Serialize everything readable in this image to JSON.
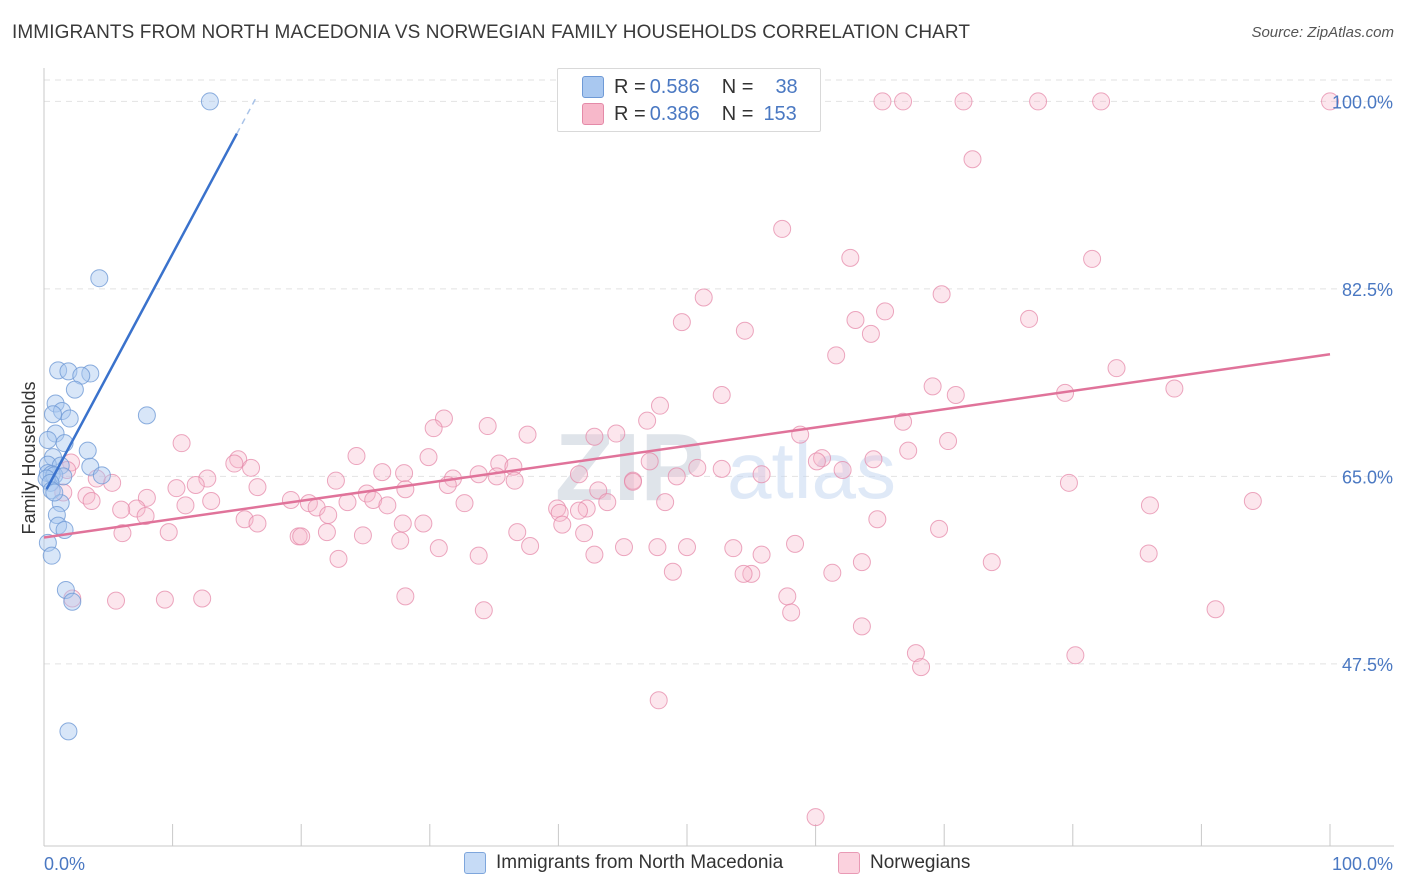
{
  "header": {
    "title": "IMMIGRANTS FROM NORTH MACEDONIA VS NORWEGIAN FAMILY HOUSEHOLDS CORRELATION CHART",
    "source": "Source: ZipAtlas.com"
  },
  "watermark": {
    "zip": "ZIP",
    "atlas": "atlas"
  },
  "legend": {
    "rows": [
      {
        "r_label": "R =",
        "r_value": "0.586",
        "n_label": "N =",
        "n_value": "38",
        "color": "#a9c8f0"
      },
      {
        "r_label": "R =",
        "r_value": "0.386",
        "n_label": "N =",
        "n_value": "153",
        "color": "#f7b8ca"
      }
    ]
  },
  "bottom_legend": {
    "series1": "Immigrants from North Macedonia",
    "series2": "Norwegians"
  },
  "chart_data": {
    "type": "scatter",
    "title": "IMMIGRANTS FROM NORTH MACEDONIA VS NORWEGIAN FAMILY HOUSEHOLDS CORRELATION CHART",
    "xlabel": "",
    "ylabel": "Family Households",
    "xlim": [
      0,
      100
    ],
    "ylim": [
      30.5,
      102
    ],
    "x_tick_labels": [
      "0.0%",
      "100.0%"
    ],
    "y_ticks": [
      47.5,
      65.0,
      82.5,
      100.0
    ],
    "y_tick_labels": [
      "47.5%",
      "65.0%",
      "82.5%",
      "100.0%"
    ],
    "grid": true,
    "colors": {
      "series1": "#a9c8f0",
      "series1_line": "#3a72cc",
      "series2": "#f7b8ca",
      "series2_line": "#e0739a",
      "axis_text": "#4a78c2"
    },
    "series": [
      {
        "name": "Immigrants from North Macedonia",
        "trend": {
          "x0": 0.2,
          "y0": 63.8,
          "x1": 15.0,
          "y1": 97.0,
          "dash_x1": 16.5
        },
        "points": [
          [
            12.9,
            100.0
          ],
          [
            4.3,
            83.5
          ],
          [
            1.1,
            74.9
          ],
          [
            1.9,
            74.8
          ],
          [
            3.6,
            74.6
          ],
          [
            2.9,
            74.4
          ],
          [
            2.4,
            73.1
          ],
          [
            0.9,
            71.8
          ],
          [
            1.4,
            71.1
          ],
          [
            0.7,
            70.8
          ],
          [
            2.0,
            70.4
          ],
          [
            8.0,
            70.7
          ],
          [
            0.9,
            69.0
          ],
          [
            1.6,
            68.1
          ],
          [
            0.3,
            68.4
          ],
          [
            3.4,
            67.4
          ],
          [
            0.7,
            66.8
          ],
          [
            0.3,
            66.1
          ],
          [
            1.3,
            66.0
          ],
          [
            3.6,
            65.9
          ],
          [
            0.3,
            65.3
          ],
          [
            0.6,
            65.2
          ],
          [
            0.8,
            65.1
          ],
          [
            1.5,
            65.0
          ],
          [
            0.2,
            64.8
          ],
          [
            4.5,
            65.1
          ],
          [
            0.5,
            64.4
          ],
          [
            0.6,
            63.7
          ],
          [
            1.3,
            62.5
          ],
          [
            1.0,
            61.4
          ],
          [
            1.1,
            60.4
          ],
          [
            1.6,
            60.0
          ],
          [
            0.3,
            58.8
          ],
          [
            0.6,
            57.6
          ],
          [
            1.7,
            54.4
          ],
          [
            2.2,
            53.3
          ],
          [
            1.9,
            41.2
          ],
          [
            0.8,
            63.5
          ]
        ]
      },
      {
        "name": "Norwegians",
        "trend": {
          "x0": 0.0,
          "y0": 59.3,
          "x1": 100.0,
          "y1": 76.4
        },
        "points": [
          [
            65.2,
            100.0
          ],
          [
            66.8,
            100.0
          ],
          [
            71.5,
            100.0
          ],
          [
            77.3,
            100.0
          ],
          [
            82.2,
            100.0
          ],
          [
            100.0,
            100.0
          ],
          [
            72.2,
            94.6
          ],
          [
            57.4,
            88.1
          ],
          [
            62.7,
            85.4
          ],
          [
            81.5,
            85.3
          ],
          [
            51.3,
            81.7
          ],
          [
            69.8,
            82.0
          ],
          [
            65.4,
            80.4
          ],
          [
            49.6,
            79.4
          ],
          [
            63.1,
            79.6
          ],
          [
            76.6,
            79.7
          ],
          [
            54.5,
            78.6
          ],
          [
            64.3,
            78.3
          ],
          [
            61.6,
            76.3
          ],
          [
            83.4,
            75.1
          ],
          [
            69.1,
            73.4
          ],
          [
            87.9,
            73.2
          ],
          [
            79.4,
            72.8
          ],
          [
            70.9,
            72.6
          ],
          [
            52.7,
            72.6
          ],
          [
            47.9,
            71.6
          ],
          [
            31.1,
            70.4
          ],
          [
            46.9,
            70.2
          ],
          [
            66.8,
            70.1
          ],
          [
            34.5,
            69.7
          ],
          [
            30.3,
            69.5
          ],
          [
            37.6,
            68.9
          ],
          [
            58.8,
            68.9
          ],
          [
            42.8,
            68.7
          ],
          [
            44.5,
            69.0
          ],
          [
            70.3,
            68.3
          ],
          [
            10.7,
            68.1
          ],
          [
            67.2,
            67.4
          ],
          [
            24.3,
            66.9
          ],
          [
            29.9,
            66.8
          ],
          [
            60.5,
            66.7
          ],
          [
            64.5,
            66.6
          ],
          [
            47.1,
            66.4
          ],
          [
            15.1,
            66.6
          ],
          [
            14.8,
            66.2
          ],
          [
            2.1,
            66.3
          ],
          [
            35.4,
            66.2
          ],
          [
            36.5,
            65.9
          ],
          [
            16.1,
            65.8
          ],
          [
            1.8,
            65.6
          ],
          [
            26.3,
            65.4
          ],
          [
            52.7,
            65.7
          ],
          [
            60.1,
            66.4
          ],
          [
            28.0,
            65.3
          ],
          [
            41.6,
            65.2
          ],
          [
            33.8,
            65.2
          ],
          [
            35.2,
            65.0
          ],
          [
            22.7,
            64.6
          ],
          [
            45.8,
            64.6
          ],
          [
            55.8,
            65.2
          ],
          [
            4.1,
            64.8
          ],
          [
            5.3,
            64.4
          ],
          [
            12.7,
            64.8
          ],
          [
            31.8,
            64.8
          ],
          [
            16.6,
            64.0
          ],
          [
            11.8,
            64.2
          ],
          [
            36.6,
            64.6
          ],
          [
            10.3,
            63.9
          ],
          [
            31.4,
            64.2
          ],
          [
            28.1,
            63.8
          ],
          [
            43.1,
            63.7
          ],
          [
            25.1,
            63.4
          ],
          [
            1.5,
            63.5
          ],
          [
            3.3,
            63.2
          ],
          [
            8.0,
            63.0
          ],
          [
            3.7,
            62.7
          ],
          [
            13.0,
            62.7
          ],
          [
            19.2,
            62.8
          ],
          [
            20.6,
            62.5
          ],
          [
            25.6,
            62.8
          ],
          [
            43.8,
            62.6
          ],
          [
            48.3,
            62.6
          ],
          [
            11.0,
            62.3
          ],
          [
            23.6,
            62.6
          ],
          [
            26.7,
            62.3
          ],
          [
            7.2,
            62.0
          ],
          [
            39.9,
            62.0
          ],
          [
            42.2,
            62.0
          ],
          [
            41.6,
            61.8
          ],
          [
            32.7,
            62.5
          ],
          [
            45.8,
            64.5
          ],
          [
            21.2,
            62.1
          ],
          [
            6.0,
            61.9
          ],
          [
            22.1,
            61.4
          ],
          [
            40.1,
            61.6
          ],
          [
            7.9,
            61.3
          ],
          [
            15.6,
            61.0
          ],
          [
            16.6,
            60.6
          ],
          [
            27.9,
            60.6
          ],
          [
            29.5,
            60.6
          ],
          [
            36.8,
            59.8
          ],
          [
            42.0,
            59.7
          ],
          [
            40.3,
            60.5
          ],
          [
            22.0,
            59.8
          ],
          [
            19.8,
            59.4
          ],
          [
            20.0,
            59.4
          ],
          [
            24.8,
            59.5
          ],
          [
            27.7,
            59.0
          ],
          [
            30.7,
            58.3
          ],
          [
            33.8,
            57.6
          ],
          [
            37.8,
            58.5
          ],
          [
            9.7,
            59.8
          ],
          [
            42.8,
            57.7
          ],
          [
            50.0,
            58.4
          ],
          [
            55.8,
            57.7
          ],
          [
            58.4,
            58.7
          ],
          [
            63.6,
            57.0
          ],
          [
            73.7,
            57.0
          ],
          [
            55.0,
            55.9
          ],
          [
            61.3,
            56.0
          ],
          [
            64.8,
            61.0
          ],
          [
            69.6,
            60.1
          ],
          [
            22.9,
            57.3
          ],
          [
            6.1,
            59.7
          ],
          [
            9.4,
            53.5
          ],
          [
            2.2,
            53.6
          ],
          [
            5.6,
            53.4
          ],
          [
            28.1,
            53.8
          ],
          [
            34.2,
            52.5
          ],
          [
            12.3,
            53.6
          ],
          [
            57.8,
            53.8
          ],
          [
            58.1,
            52.3
          ],
          [
            63.6,
            51.0
          ],
          [
            80.2,
            48.3
          ],
          [
            91.1,
            52.6
          ],
          [
            67.8,
            48.5
          ],
          [
            68.2,
            47.2
          ],
          [
            47.8,
            44.1
          ],
          [
            60.0,
            33.2
          ],
          [
            45.1,
            58.4
          ],
          [
            48.9,
            56.1
          ],
          [
            47.7,
            58.4
          ],
          [
            49.2,
            65.0
          ],
          [
            53.6,
            58.3
          ],
          [
            54.4,
            55.9
          ],
          [
            50.8,
            65.8
          ],
          [
            62.1,
            65.6
          ],
          [
            79.7,
            64.4
          ],
          [
            94.0,
            62.7
          ],
          [
            85.9,
            57.8
          ],
          [
            86.0,
            62.3
          ]
        ]
      }
    ]
  }
}
